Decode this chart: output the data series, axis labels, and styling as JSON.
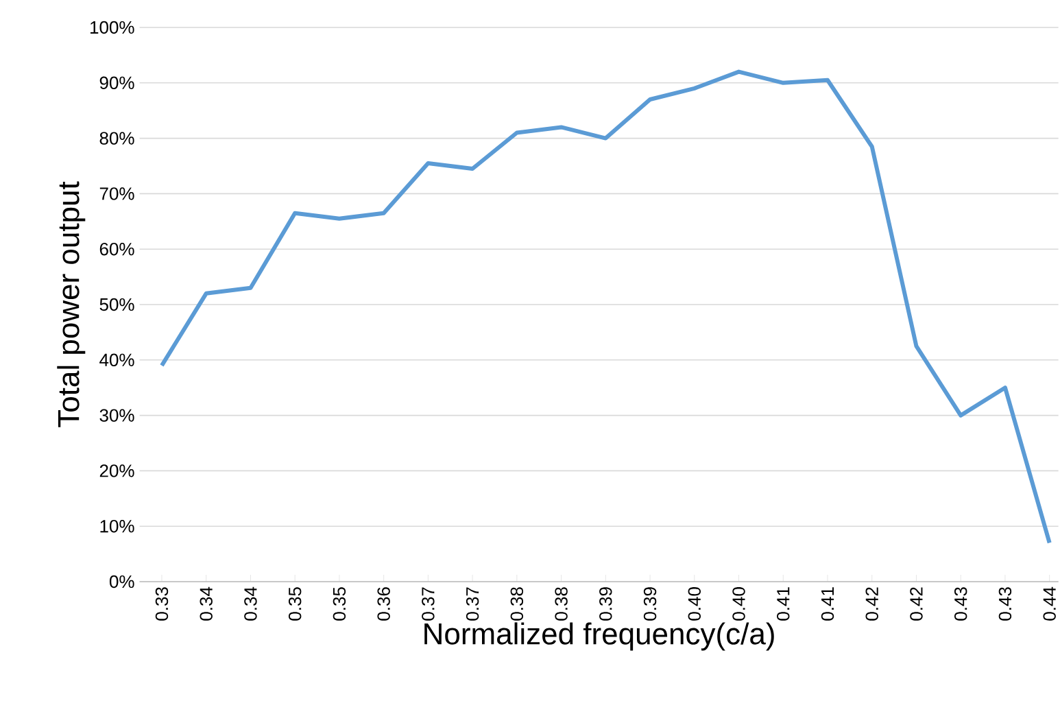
{
  "chart_data": {
    "type": "line",
    "xlabel": "Normalized frequency(c/a)",
    "ylabel": "Total power output",
    "categories": [
      "0.33",
      "0.34",
      "0.34",
      "0.35",
      "0.35",
      "0.36",
      "0.37",
      "0.37",
      "0.38",
      "0.38",
      "0.39",
      "0.39",
      "0.40",
      "0.40",
      "0.41",
      "0.41",
      "0.42",
      "0.42",
      "0.43",
      "0.43",
      "0.44"
    ],
    "series": [
      {
        "color": "#5b9bd5",
        "values": [
          39,
          52,
          53,
          66.5,
          65.5,
          66.5,
          75.5,
          74.5,
          81,
          82,
          80,
          87,
          89,
          92,
          90,
          90.5,
          78.5,
          42.5,
          30,
          35,
          7
        ]
      }
    ],
    "ylim": [
      0,
      100
    ],
    "yticks": [
      {
        "value": 0,
        "label": "0%"
      },
      {
        "value": 10,
        "label": "10%"
      },
      {
        "value": 20,
        "label": "20%"
      },
      {
        "value": 30,
        "label": "30%"
      },
      {
        "value": 40,
        "label": "40%"
      },
      {
        "value": 50,
        "label": "50%"
      },
      {
        "value": 60,
        "label": "60%"
      },
      {
        "value": 70,
        "label": "70%"
      },
      {
        "value": 80,
        "label": "80%"
      },
      {
        "value": 90,
        "label": "90%"
      },
      {
        "value": 100,
        "label": "100%"
      }
    ],
    "grid": "y",
    "marker": "none",
    "line_style": "solid"
  }
}
